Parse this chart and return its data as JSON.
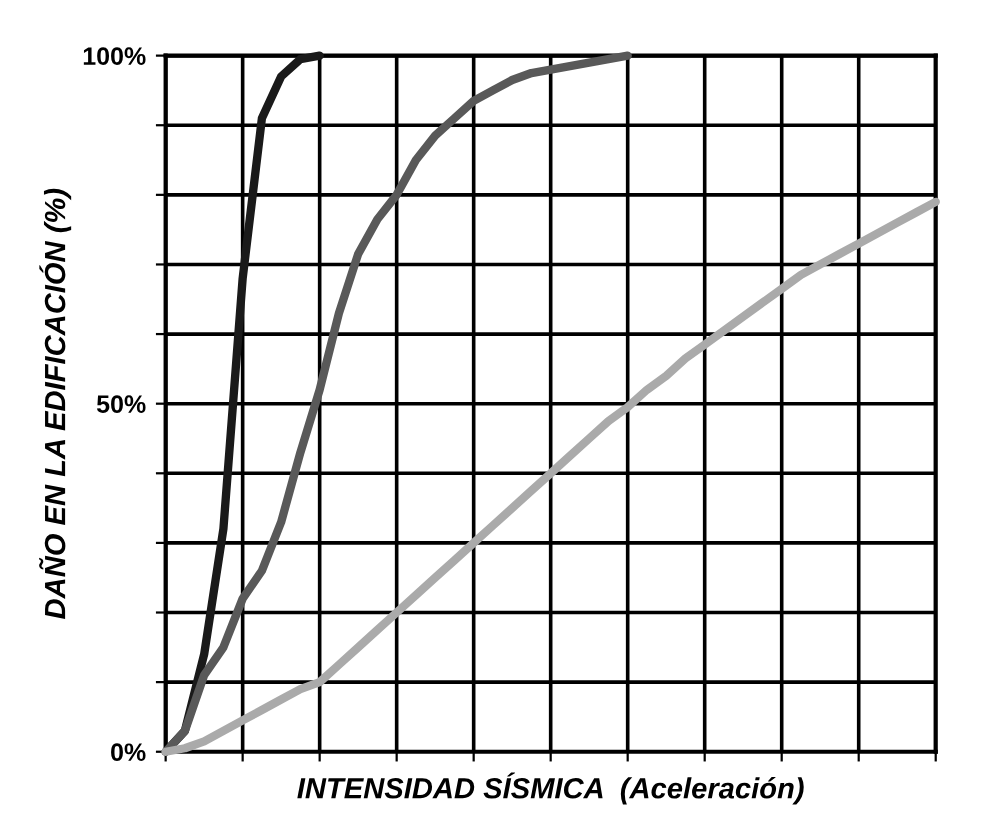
{
  "chart_data": {
    "type": "line",
    "xlabel": "INTENSIDAD SÍSMICA  (Aceleración)",
    "ylabel": "DAÑO EN LA EDIFICACIÓN (%)",
    "categories": [
      null,
      null,
      null,
      null,
      null,
      null,
      null,
      null,
      null,
      null,
      null,
      null,
      null,
      null,
      null,
      null,
      null,
      null,
      null,
      null,
      null,
      null,
      null,
      null,
      null,
      null,
      null,
      null,
      null,
      null,
      null,
      null,
      null,
      null,
      null,
      null,
      null,
      null,
      null,
      null,
      null
    ],
    "series": [
      {
        "color": "#1a1a1a",
        "values": [
          0,
          3,
          14,
          32,
          68,
          91,
          97,
          99.5,
          100,
          null,
          null,
          null,
          null,
          null,
          null,
          null,
          null,
          null,
          null,
          null,
          null,
          null,
          null,
          null,
          null,
          null,
          null,
          null,
          null,
          null,
          null,
          null,
          null,
          null,
          null,
          null,
          null,
          null,
          null,
          null,
          null
        ]
      },
      {
        "color": "#595959",
        "values": [
          0,
          3,
          11,
          15,
          22,
          26,
          33,
          43,
          52,
          63,
          71.5,
          76.5,
          80,
          85,
          88.5,
          91,
          93.5,
          95,
          96.5,
          97.5,
          98,
          98.5,
          99,
          99.5,
          100,
          null,
          null,
          null,
          null,
          null,
          null,
          null,
          null,
          null,
          null,
          null,
          null,
          null,
          null,
          null,
          null
        ]
      },
      {
        "color": "#aaaaaa",
        "values": [
          0,
          0.5,
          1.5,
          3,
          4.5,
          6,
          7.5,
          9,
          10,
          12.5,
          15,
          17.5,
          20,
          22.5,
          25,
          27.5,
          30,
          32.5,
          35,
          37.5,
          40,
          42.5,
          45,
          47.5,
          49.5,
          52,
          54,
          56.5,
          58.5,
          60.5,
          62.5,
          64.5,
          66.5,
          68.5,
          70,
          71.5,
          73,
          74.5,
          76,
          77.5,
          79
        ]
      }
    ],
    "ylim": [
      0,
      100
    ],
    "yticks": [
      {
        "value": 0,
        "label": "0%"
      },
      {
        "value": 10,
        "label": null
      },
      {
        "value": 20,
        "label": null
      },
      {
        "value": 30,
        "label": null
      },
      {
        "value": 40,
        "label": null
      },
      {
        "value": 50,
        "label": "50%"
      },
      {
        "value": 60,
        "label": null
      },
      {
        "value": 70,
        "label": null
      },
      {
        "value": 80,
        "label": null
      },
      {
        "value": 90,
        "label": null
      },
      {
        "value": 100,
        "label": "100%"
      }
    ],
    "grid": true,
    "marker": "none",
    "line_style": "solid",
    "tick_labels": "y"
  }
}
